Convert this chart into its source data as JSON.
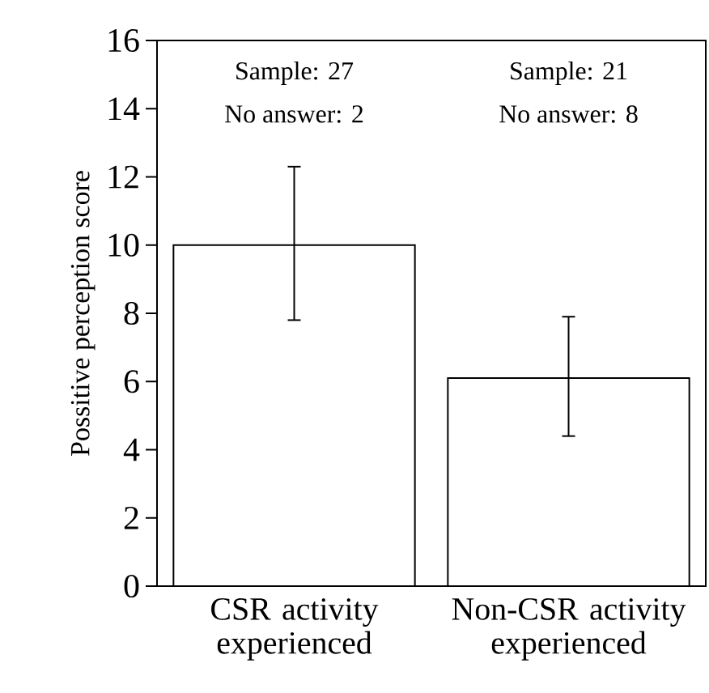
{
  "chart_data": {
    "type": "bar",
    "ylabel": "Possitive perception score",
    "categories": [
      "CSR activity experienced",
      "Non-CSR activity experienced"
    ],
    "values": [
      10.0,
      6.1
    ],
    "errors": [
      [
        7.8,
        12.3
      ],
      [
        4.4,
        7.9
      ]
    ],
    "color": "#ffffff",
    "ylim": [
      0,
      16
    ],
    "yticks": [
      0,
      2,
      4,
      6,
      8,
      10,
      12,
      14,
      16
    ],
    "annotations": [
      "Sample: 27",
      "No answer: 2",
      "Sample: 21",
      "No answer: 8"
    ]
  }
}
